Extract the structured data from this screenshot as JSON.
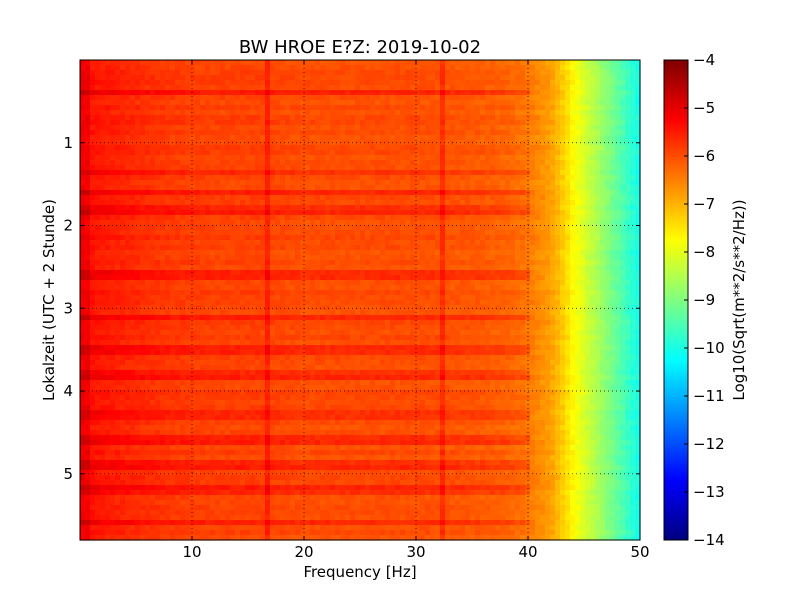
{
  "chart_data": {
    "type": "heatmap",
    "title": "BW HROE E?Z: 2019-10-02",
    "xlabel": "Frequency [Hz]",
    "ylabel": "Lokalzeit (UTC + 2 Stunde)",
    "xlim": [
      0,
      50
    ],
    "ylim": [
      0,
      5.8
    ],
    "y_inverted": true,
    "xticks": [
      10,
      20,
      30,
      40,
      50
    ],
    "xtick_labels": [
      "10",
      "20",
      "30",
      "40",
      "50"
    ],
    "yticks": [
      1,
      2,
      3,
      4,
      5
    ],
    "ytick_labels": [
      "1",
      "2",
      "3",
      "4",
      "5"
    ],
    "grid": true,
    "colormap": "jet",
    "colorbar": {
      "label": "Log10(Sqrt(m**2/s**2/Hz))",
      "range": [
        -14,
        -4
      ],
      "ticks": [
        -4,
        -5,
        -6,
        -7,
        -8,
        -9,
        -10,
        -11,
        -12,
        -13,
        -14
      ],
      "tick_labels": [
        "−4",
        "−5",
        "−6",
        "−7",
        "−8",
        "−9",
        "−10",
        "−11",
        "−12",
        "−13",
        "−14"
      ]
    },
    "spectrum_profile": {
      "frequency_hz": [
        0,
        0.5,
        1,
        2,
        4,
        8,
        12,
        16,
        20,
        25,
        30,
        35,
        38,
        40,
        42,
        43,
        44,
        45,
        46,
        47,
        48,
        49,
        50
      ],
      "level": [
        -5.2,
        -5.0,
        -5.4,
        -5.5,
        -5.6,
        -5.8,
        -5.9,
        -5.9,
        -6.0,
        -6.0,
        -6.0,
        -6.1,
        -6.2,
        -6.4,
        -6.8,
        -7.2,
        -7.7,
        -8.1,
        -8.5,
        -8.9,
        -9.3,
        -9.7,
        -10.1
      ]
    },
    "spectral_lines_hz": [
      16.7,
      32.4
    ],
    "time_bands_h": [
      0.4,
      1.35,
      1.6,
      1.8,
      2.6,
      3.1,
      3.5,
      3.8,
      4.3,
      4.6,
      4.9,
      5.2,
      5.6
    ]
  }
}
